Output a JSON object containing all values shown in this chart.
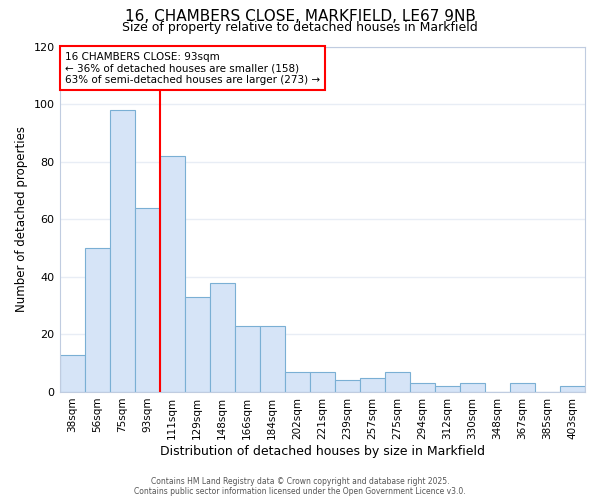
{
  "title": "16, CHAMBERS CLOSE, MARKFIELD, LE67 9NB",
  "subtitle": "Size of property relative to detached houses in Markfield",
  "xlabel": "Distribution of detached houses by size in Markfield",
  "ylabel": "Number of detached properties",
  "categories": [
    "38sqm",
    "56sqm",
    "75sqm",
    "93sqm",
    "111sqm",
    "129sqm",
    "148sqm",
    "166sqm",
    "184sqm",
    "202sqm",
    "221sqm",
    "239sqm",
    "257sqm",
    "275sqm",
    "294sqm",
    "312sqm",
    "330sqm",
    "348sqm",
    "367sqm",
    "385sqm",
    "403sqm"
  ],
  "values": [
    13,
    50,
    98,
    64,
    82,
    33,
    38,
    23,
    23,
    7,
    7,
    4,
    5,
    7,
    3,
    2,
    3,
    0,
    3,
    0,
    2
  ],
  "bar_color": "#d6e4f7",
  "bar_edge_color": "#7aafd4",
  "vline_x_index": 3,
  "vline_color": "red",
  "annotation_line1": "16 CHAMBERS CLOSE: 93sqm",
  "annotation_line2": "← 36% of detached houses are smaller (158)",
  "annotation_line3": "63% of semi-detached houses are larger (273) →",
  "annotation_box_color": "white",
  "annotation_box_edge": "red",
  "ylim": [
    0,
    120
  ],
  "yticks": [
    0,
    20,
    40,
    60,
    80,
    100,
    120
  ],
  "background_color": "#ffffff",
  "grid_color": "#e8edf5",
  "footer_line1": "Contains HM Land Registry data © Crown copyright and database right 2025.",
  "footer_line2": "Contains public sector information licensed under the Open Government Licence v3.0."
}
